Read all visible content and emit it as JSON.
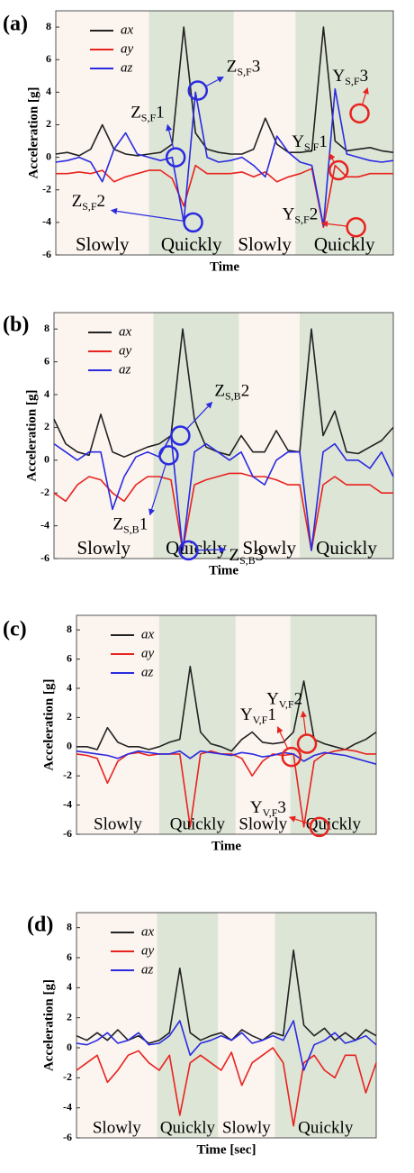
{
  "chart_data": [
    {
      "type": "line",
      "panel_label": "(a)",
      "xlabel": "Time",
      "ylabel": "Acceleration [g]",
      "x": [
        0,
        1,
        2,
        3,
        4,
        5,
        6,
        7,
        8,
        9,
        10,
        11,
        12,
        13,
        14,
        15,
        16,
        17,
        18,
        19,
        20,
        21,
        22,
        23,
        24,
        25,
        26,
        27,
        28,
        29
      ],
      "xlim": [
        0,
        29
      ],
      "ylim": [
        -6,
        9
      ],
      "yticks": [
        -6,
        -4,
        -2,
        0,
        2,
        4,
        6,
        8
      ],
      "series": [
        {
          "name": "ax",
          "color": "#222222",
          "values": [
            0.2,
            0.3,
            0.1,
            0.5,
            2,
            0.5,
            0.2,
            0.1,
            0.2,
            0.3,
            0.8,
            8,
            1.5,
            0.5,
            0.3,
            0.2,
            0.2,
            0.5,
            2.4,
            0.8,
            0.3,
            0.3,
            0.4,
            8,
            1,
            0.4,
            0.5,
            0.6,
            0.4,
            0.3
          ]
        },
        {
          "name": "ay",
          "color": "#e8231f",
          "values": [
            -1,
            -1,
            -0.9,
            -1,
            -0.8,
            -1.5,
            -1.2,
            -1,
            -0.8,
            -0.8,
            -1.3,
            -3,
            -0.5,
            -1,
            -1,
            -1,
            -0.9,
            -1.2,
            -0.9,
            -1.5,
            -1.2,
            -1,
            -0.7,
            -4.3,
            -0.5,
            -1.2,
            -1.2,
            -1,
            -1,
            -1
          ]
        },
        {
          "name": "az",
          "color": "#2a2ae0",
          "values": [
            -0.3,
            -0.2,
            0,
            -0.3,
            -1.5,
            0.5,
            1.5,
            0.2,
            0,
            -0.2,
            0,
            -4,
            4,
            0,
            -0.3,
            -0.2,
            0,
            -0.5,
            -1.2,
            1.3,
            0.3,
            -0.3,
            -0.5,
            -4.2,
            4.2,
            0.2,
            0,
            -0.2,
            -0.3,
            -0.2
          ]
        }
      ],
      "regions": [
        {
          "start": 0,
          "end": 8,
          "label": "Slowly",
          "color": "#fbf4ef"
        },
        {
          "start": 8,
          "end": 15.3,
          "label": "Quickly",
          "color": "#dde5d6"
        },
        {
          "start": 15.3,
          "end": 20.6,
          "label": "Slowly",
          "color": "#fbf4ef"
        },
        {
          "start": 20.6,
          "end": 29,
          "label": "Quickly",
          "color": "#dde5d6"
        }
      ],
      "annotations": [
        {
          "text": "Z",
          "sub": "S,F",
          "num": "1",
          "x": 10.3,
          "y": 0,
          "color": "#2a2ae0"
        },
        {
          "text": "Z",
          "sub": "S,F",
          "num": "2",
          "x": 11.8,
          "y": -4,
          "color": "#2a2ae0"
        },
        {
          "text": "Z",
          "sub": "S,F",
          "num": "3",
          "x": 12.2,
          "y": 4.1,
          "color": "#2a2ae0"
        },
        {
          "text": "Y",
          "sub": "S,F",
          "num": "1",
          "x": 24.3,
          "y": -0.8,
          "color": "#e8231f"
        },
        {
          "text": "Y",
          "sub": "S,F",
          "num": "2",
          "x": 25.8,
          "y": -4.3,
          "color": "#e8231f"
        },
        {
          "text": "Y",
          "sub": "S,F",
          "num": "3",
          "x": 26.1,
          "y": 2.7,
          "color": "#e8231f"
        }
      ]
    },
    {
      "type": "line",
      "panel_label": "(b)",
      "xlabel": "Time",
      "ylabel": "Acceleration [g]",
      "x": [
        0,
        1,
        2,
        3,
        4,
        5,
        6,
        7,
        8,
        9,
        10,
        11,
        12,
        13,
        14,
        15,
        16,
        17,
        18,
        19,
        20,
        21,
        22,
        23,
        24,
        25,
        26,
        27,
        28,
        29
      ],
      "xlim": [
        0,
        29
      ],
      "ylim": [
        -6,
        9
      ],
      "yticks": [
        -6,
        -4,
        -2,
        0,
        2,
        4,
        6,
        8
      ],
      "series": [
        {
          "name": "ax",
          "color": "#222222",
          "values": [
            2.5,
            1,
            0.5,
            0.3,
            2.8,
            0.5,
            0.2,
            0.5,
            0.8,
            1,
            1.5,
            8,
            2.5,
            0.8,
            0.5,
            0.3,
            1.5,
            0.5,
            0.5,
            1.8,
            0.6,
            0.5,
            8,
            1.5,
            3,
            0.5,
            0.4,
            0.8,
            1.2,
            2
          ]
        },
        {
          "name": "ay",
          "color": "#e8231f",
          "values": [
            -2,
            -2.5,
            -1.5,
            -1,
            -1.2,
            -2,
            -2.5,
            -1.5,
            -1,
            -1,
            -1.2,
            -5.5,
            -1.5,
            -1.2,
            -1,
            -0.8,
            -0.8,
            -1,
            -1,
            -1.2,
            -1.5,
            -1.5,
            -5.5,
            -1.5,
            -1,
            -1.5,
            -1.5,
            -1.5,
            -2,
            -2
          ]
        },
        {
          "name": "az",
          "color": "#2a2ae0",
          "values": [
            1,
            0.5,
            0,
            0.5,
            0.5,
            -3,
            -1,
            0.2,
            0.5,
            0.2,
            1.5,
            -5.5,
            0.5,
            1,
            0.5,
            0,
            0.5,
            -1,
            -1.5,
            0,
            0.5,
            0.5,
            -5.5,
            0.5,
            1,
            0,
            0,
            -0.5,
            0.5,
            -1
          ]
        }
      ],
      "regions": [
        {
          "start": 0,
          "end": 8.5,
          "label": "Slowly",
          "color": "#fbf4ef"
        },
        {
          "start": 8.5,
          "end": 15.8,
          "label": "Quickly",
          "color": "#dde5d6"
        },
        {
          "start": 15.8,
          "end": 21,
          "label": "Slowly",
          "color": "#fbf4ef"
        },
        {
          "start": 21,
          "end": 29,
          "label": "Quickly",
          "color": "#dde5d6"
        }
      ],
      "annotations": [
        {
          "text": "Z",
          "sub": "S,B",
          "num": "1",
          "x": 9.8,
          "y": 0.3,
          "color": "#2a2ae0"
        },
        {
          "text": "Z",
          "sub": "S,B",
          "num": "2",
          "x": 10.8,
          "y": 1.5,
          "color": "#2a2ae0"
        },
        {
          "text": "Z",
          "sub": "S,B",
          "num": "3",
          "x": 11.5,
          "y": -5.5,
          "color": "#2a2ae0"
        }
      ]
    },
    {
      "type": "line",
      "panel_label": "(c)",
      "xlabel": "Time",
      "ylabel": "Acceleration [g]",
      "x": [
        0,
        1,
        2,
        3,
        4,
        5,
        6,
        7,
        8,
        9,
        10,
        11,
        12,
        13,
        14,
        15,
        16,
        17,
        18,
        19,
        20,
        21,
        22,
        23,
        24,
        25,
        26,
        27,
        28,
        29
      ],
      "xlim": [
        0,
        29
      ],
      "ylim": [
        -6,
        9
      ],
      "yticks": [
        -6,
        -4,
        -2,
        0,
        2,
        4,
        6,
        8
      ],
      "series": [
        {
          "name": "ax",
          "color": "#222222",
          "values": [
            0,
            0,
            -0.2,
            1.3,
            0.3,
            0,
            0,
            -0.2,
            0,
            0.3,
            0.5,
            5.5,
            1,
            0.2,
            0,
            -0.3,
            0.5,
            1,
            0.3,
            0.2,
            0.3,
            1,
            4.5,
            0.5,
            0.2,
            0,
            -0.2,
            0.2,
            0.5,
            1
          ]
        },
        {
          "name": "ay",
          "color": "#e8231f",
          "values": [
            -0.5,
            -0.6,
            -0.8,
            -2.5,
            -1,
            -0.5,
            -0.4,
            -0.6,
            -0.5,
            -0.5,
            -0.5,
            -5.5,
            -0.5,
            -0.3,
            -0.5,
            -0.5,
            -0.8,
            -2,
            -1,
            -0.5,
            -0.6,
            -0.5,
            -5.5,
            -1,
            -0.5,
            -0.3,
            -0.2,
            -0.3,
            -0.5,
            -0.5
          ]
        },
        {
          "name": "az",
          "color": "#2a2ae0",
          "values": [
            -0.3,
            -0.4,
            -0.5,
            -0.6,
            -0.8,
            -0.5,
            -0.3,
            -0.4,
            -0.5,
            -0.5,
            -0.3,
            -0.8,
            -0.3,
            -0.4,
            -0.5,
            -0.6,
            -0.4,
            -0.5,
            -0.7,
            -0.6,
            -0.4,
            -0.5,
            -1,
            -0.6,
            -0.4,
            -0.5,
            -0.6,
            -0.8,
            -1,
            -1.2
          ]
        }
      ],
      "regions": [
        {
          "start": 0,
          "end": 8,
          "label": "Slowly",
          "color": "#fbf4ef"
        },
        {
          "start": 8,
          "end": 15.4,
          "label": "Quickly",
          "color": "#dde5d6"
        },
        {
          "start": 15.4,
          "end": 20.7,
          "label": "Slowly",
          "color": "#fbf4ef"
        },
        {
          "start": 20.7,
          "end": 29,
          "label": "Quickly",
          "color": "#dde5d6"
        }
      ],
      "annotations": [
        {
          "text": "Y",
          "sub": "V,F",
          "num": "1",
          "x": 20.8,
          "y": -0.7,
          "color": "#e8231f"
        },
        {
          "text": "Y",
          "sub": "V,F",
          "num": "2",
          "x": 22.3,
          "y": 0.2,
          "color": "#e8231f"
        },
        {
          "text": "Y",
          "sub": "V,F",
          "num": "3",
          "x": 23.5,
          "y": -5.5,
          "color": "#e8231f"
        }
      ]
    },
    {
      "type": "line",
      "panel_label": "(d)",
      "xlabel": "Time [sec]",
      "ylabel": "Acceleration [g]",
      "x": [
        0,
        1,
        2,
        3,
        4,
        5,
        6,
        7,
        8,
        9,
        10,
        11,
        12,
        13,
        14,
        15,
        16,
        17,
        18,
        19,
        20,
        21,
        22,
        23,
        24,
        25,
        26,
        27,
        28,
        29
      ],
      "xlim": [
        0,
        29
      ],
      "ylim": [
        -6,
        9
      ],
      "yticks": [
        -6,
        -4,
        -2,
        0,
        2,
        4,
        6,
        8
      ],
      "series": [
        {
          "name": "ax",
          "color": "#222222",
          "values": [
            0.8,
            0.5,
            1,
            0.5,
            1.2,
            0.5,
            0.8,
            0.3,
            0.5,
            1,
            5.3,
            1,
            0.5,
            0.8,
            1,
            0.5,
            1.2,
            0.8,
            0.5,
            1,
            0.8,
            6.5,
            1.5,
            0.8,
            1.3,
            0.5,
            1,
            0.5,
            1.2,
            0.8
          ]
        },
        {
          "name": "ay",
          "color": "#e8231f",
          "values": [
            -1.5,
            -1,
            -0.5,
            -2.3,
            -1.5,
            -0.5,
            -0.2,
            -1,
            -1.5,
            -0.5,
            -4.5,
            -1,
            -0.5,
            -1,
            -1.5,
            -0.3,
            -2.5,
            -1,
            -0.5,
            0,
            -1,
            -5.2,
            -1,
            -0.5,
            -1.5,
            -2,
            -0.5,
            -0.5,
            -3,
            -1
          ]
        },
        {
          "name": "az",
          "color": "#2a2ae0",
          "values": [
            0.3,
            0.2,
            0.5,
            1,
            0.3,
            0.5,
            1,
            0.2,
            0.3,
            0.8,
            1.8,
            -0.5,
            0.3,
            0.5,
            0.8,
            0.5,
            1,
            0.3,
            0.5,
            0.8,
            0.5,
            1.8,
            -1.5,
            0.2,
            0.5,
            1,
            0.3,
            0.5,
            0.8,
            0.2
          ]
        }
      ],
      "regions": [
        {
          "start": 0,
          "end": 7.8,
          "label": "Slowly",
          "color": "#fbf4ef"
        },
        {
          "start": 7.8,
          "end": 13.7,
          "label": "Quickly",
          "color": "#dde5d6"
        },
        {
          "start": 13.7,
          "end": 19.2,
          "label": "Slowly",
          "color": "#fbf4ef"
        },
        {
          "start": 19.2,
          "end": 29,
          "label": "Quickly",
          "color": "#dde5d6"
        }
      ],
      "annotations": []
    }
  ]
}
